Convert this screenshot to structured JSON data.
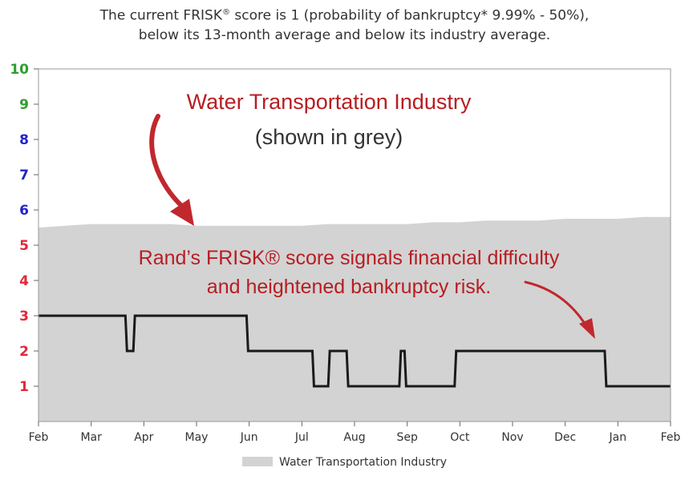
{
  "header": {
    "line1_pre": "The current FRISK",
    "line1_sup": "®",
    "line1_post": " score is 1 (probability of bankruptcy* 9.99% - 50%),",
    "line2": "below its 13-month average and below its industry average."
  },
  "annotations": {
    "industry_title": "Water Transportation Industry",
    "industry_sub": "(shown in grey)",
    "frisk_line1": "Rand’s FRISK® score signals financial difficulty",
    "frisk_line2": "and heightened bankruptcy risk."
  },
  "legend": {
    "label": "Water Transportation Industry"
  },
  "colors": {
    "industry_fill": "#d3d3d3",
    "company_line": "#1a1a1a",
    "annotation_red": "#b81d22",
    "tick_green": "#2e9e2e",
    "tick_blue": "#2323c8",
    "tick_red": "#e0283c"
  },
  "chart_data": {
    "type": "area",
    "x_tick_labels": [
      "Feb",
      "Mar",
      "Apr",
      "May",
      "Jun",
      "Jul",
      "Aug",
      "Sep",
      "Oct",
      "Nov",
      "Dec",
      "Jan",
      "Feb"
    ],
    "y_tick_labels": [
      "1",
      "2",
      "3",
      "4",
      "5",
      "6",
      "7",
      "8",
      "9",
      "10"
    ],
    "ylim": [
      0,
      10
    ],
    "xlim": [
      0,
      12
    ],
    "grid": false,
    "legend_position": "bottom",
    "series": [
      {
        "name": "Water Transportation Industry",
        "kind": "area",
        "x": [
          0,
          0.5,
          1,
          1.5,
          2,
          2.5,
          3,
          3.5,
          4,
          4.5,
          5,
          5.5,
          6,
          6.5,
          7,
          7.5,
          8,
          8.5,
          9,
          9.5,
          10,
          10.5,
          11,
          11.5,
          12
        ],
        "y": [
          5.5,
          5.55,
          5.6,
          5.6,
          5.6,
          5.6,
          5.55,
          5.55,
          5.55,
          5.55,
          5.55,
          5.6,
          5.6,
          5.6,
          5.6,
          5.65,
          5.65,
          5.7,
          5.7,
          5.7,
          5.75,
          5.75,
          5.75,
          5.8,
          5.8
        ]
      },
      {
        "kind": "step-line",
        "x": [
          0,
          1.65,
          1.68,
          1.8,
          1.83,
          3.95,
          3.98,
          5.2,
          5.23,
          5.5,
          5.53,
          5.85,
          5.88,
          6.85,
          6.88,
          6.95,
          6.98,
          7.9,
          7.93,
          10.75,
          10.78,
          12
        ],
        "y": [
          3,
          3,
          2,
          2,
          3,
          3,
          2,
          2,
          1,
          1,
          2,
          2,
          1,
          1,
          2,
          2,
          1,
          1,
          2,
          2,
          1,
          1
        ]
      }
    ]
  }
}
